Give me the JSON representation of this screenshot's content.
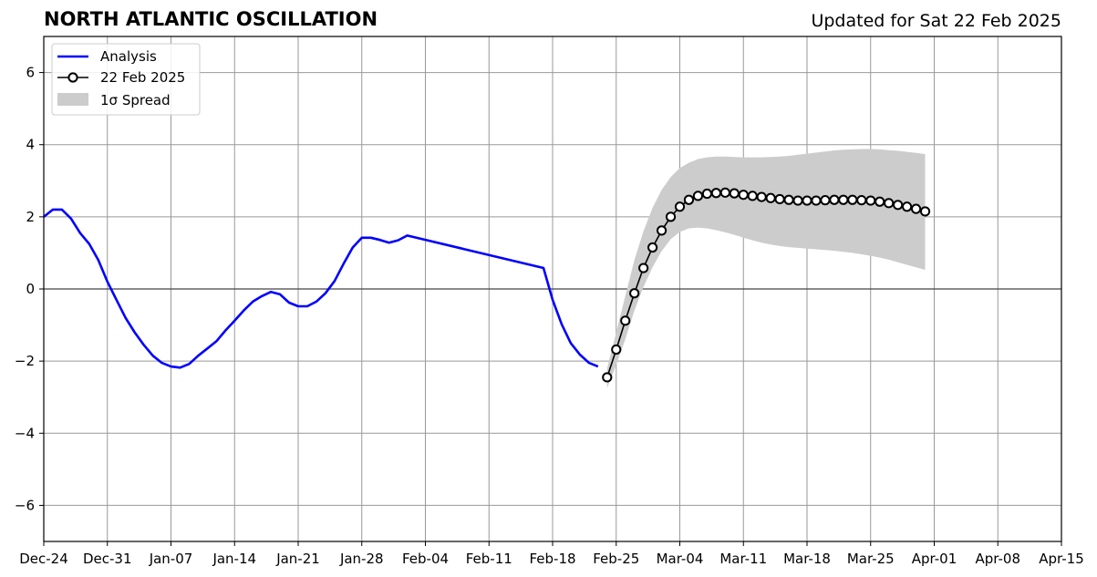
{
  "chart_data": {
    "type": "line",
    "title": "NORTH ATLANTIC OSCILLATION",
    "subtitle": "Updated for Sat 22 Feb 2025",
    "xlabel": "",
    "ylabel": "",
    "xlim": [
      "2024-12-24",
      "2025-04-15"
    ],
    "ylim": [
      -7,
      7
    ],
    "x_tick_labels": [
      "Dec-24",
      "Dec-31",
      "Jan-07",
      "Jan-14",
      "Jan-21",
      "Jan-28",
      "Feb-04",
      "Feb-11",
      "Feb-18",
      "Feb-25",
      "Mar-04",
      "Mar-11",
      "Mar-18",
      "Mar-25",
      "Apr-01",
      "Apr-08",
      "Apr-15"
    ],
    "y_ticks": [
      -6,
      -4,
      -2,
      0,
      2,
      4,
      6
    ],
    "y_tick_labels": [
      "−6",
      "−4",
      "−2",
      "0",
      "2",
      "4",
      "6"
    ],
    "grid": true,
    "legend_position": "top-left",
    "series": [
      {
        "name": "Analysis",
        "color": "#0000ff",
        "style": "line",
        "x": [
          "2024-12-24",
          "2024-12-25",
          "2024-12-26",
          "2024-12-27",
          "2024-12-28",
          "2024-12-29",
          "2024-12-30",
          "2024-12-31",
          "2025-01-01",
          "2025-01-02",
          "2025-01-03",
          "2025-01-04",
          "2025-01-05",
          "2025-01-06",
          "2025-01-07",
          "2025-01-08",
          "2025-01-09",
          "2025-01-10",
          "2025-01-11",
          "2025-01-12",
          "2025-01-13",
          "2025-01-14",
          "2025-01-15",
          "2025-01-16",
          "2025-01-17",
          "2025-01-18",
          "2025-01-19",
          "2025-01-20",
          "2025-01-21",
          "2025-01-22",
          "2025-01-23",
          "2025-01-24",
          "2025-01-25",
          "2025-01-26",
          "2025-01-27",
          "2025-01-28",
          "2025-01-29",
          "2025-01-30",
          "2025-01-31",
          "2025-02-01",
          "2025-02-02",
          "2025-02-17",
          "2025-02-18",
          "2025-02-19",
          "2025-02-20",
          "2025-02-21",
          "2025-02-22",
          "2025-02-23"
        ],
        "values": [
          2.0,
          2.2,
          2.2,
          1.95,
          1.55,
          1.25,
          0.8,
          0.2,
          -0.3,
          -0.8,
          -1.2,
          -1.55,
          -1.85,
          -2.05,
          -2.15,
          -2.18,
          -2.08,
          -1.85,
          -1.65,
          -1.45,
          -1.15,
          -0.88,
          -0.6,
          -0.35,
          -0.2,
          -0.08,
          -0.15,
          -0.38,
          -0.48,
          -0.48,
          -0.35,
          -0.12,
          0.22,
          0.7,
          1.15,
          1.42,
          1.42,
          1.36,
          1.28,
          1.35,
          1.48,
          0.58,
          -0.3,
          -0.98,
          -1.5,
          -1.82,
          -2.05,
          -2.15
        ]
      },
      {
        "name": "22 Feb 2025",
        "color": "#000000",
        "marker_fill": "#ffffff",
        "style": "line-with-circle-markers",
        "x": [
          "2025-02-24",
          "2025-02-25",
          "2025-02-26",
          "2025-02-27",
          "2025-02-28",
          "2025-03-01",
          "2025-03-02",
          "2025-03-03",
          "2025-03-04",
          "2025-03-05",
          "2025-03-06",
          "2025-03-07",
          "2025-03-08",
          "2025-03-09",
          "2025-03-10",
          "2025-03-11",
          "2025-03-12",
          "2025-03-13",
          "2025-03-14",
          "2025-03-15",
          "2025-03-16",
          "2025-03-17",
          "2025-03-18",
          "2025-03-19",
          "2025-03-20",
          "2025-03-21",
          "2025-03-22",
          "2025-03-23",
          "2025-03-24",
          "2025-03-25",
          "2025-03-26",
          "2025-03-27",
          "2025-03-28",
          "2025-03-29",
          "2025-03-30",
          "2025-03-31"
        ],
        "values": [
          -2.45,
          -1.68,
          -0.88,
          -0.12,
          0.58,
          1.15,
          1.62,
          2.0,
          2.28,
          2.47,
          2.58,
          2.64,
          2.66,
          2.67,
          2.65,
          2.61,
          2.58,
          2.55,
          2.52,
          2.49,
          2.47,
          2.45,
          2.45,
          2.45,
          2.46,
          2.47,
          2.47,
          2.47,
          2.46,
          2.45,
          2.42,
          2.38,
          2.33,
          2.28,
          2.22,
          2.15
        ]
      },
      {
        "name": "1σ Spread",
        "color": "#cccccc",
        "style": "band",
        "x": [
          "2025-02-24",
          "2025-02-25",
          "2025-02-26",
          "2025-02-27",
          "2025-02-28",
          "2025-03-01",
          "2025-03-02",
          "2025-03-03",
          "2025-03-04",
          "2025-03-05",
          "2025-03-06",
          "2025-03-07",
          "2025-03-08",
          "2025-03-09",
          "2025-03-10",
          "2025-03-11",
          "2025-03-12",
          "2025-03-13",
          "2025-03-14",
          "2025-03-15",
          "2025-03-16",
          "2025-03-17",
          "2025-03-18",
          "2025-03-19",
          "2025-03-20",
          "2025-03-21",
          "2025-03-22",
          "2025-03-23",
          "2025-03-24",
          "2025-03-25",
          "2025-03-26",
          "2025-03-27",
          "2025-03-28",
          "2025-03-29",
          "2025-03-30",
          "2025-03-31"
        ],
        "upper": [
          -2.2,
          -1.2,
          -0.2,
          0.8,
          1.6,
          2.25,
          2.75,
          3.1,
          3.35,
          3.5,
          3.6,
          3.65,
          3.67,
          3.67,
          3.66,
          3.65,
          3.65,
          3.65,
          3.66,
          3.67,
          3.69,
          3.72,
          3.75,
          3.78,
          3.81,
          3.84,
          3.86,
          3.87,
          3.88,
          3.88,
          3.87,
          3.85,
          3.83,
          3.8,
          3.77,
          3.74
        ],
        "lower": [
          -2.75,
          -2.1,
          -1.4,
          -0.6,
          0.05,
          0.6,
          1.05,
          1.38,
          1.58,
          1.68,
          1.7,
          1.68,
          1.63,
          1.57,
          1.5,
          1.42,
          1.35,
          1.28,
          1.23,
          1.19,
          1.16,
          1.14,
          1.12,
          1.1,
          1.08,
          1.06,
          1.03,
          1.0,
          0.96,
          0.92,
          0.87,
          0.81,
          0.74,
          0.67,
          0.6,
          0.53
        ]
      }
    ]
  }
}
